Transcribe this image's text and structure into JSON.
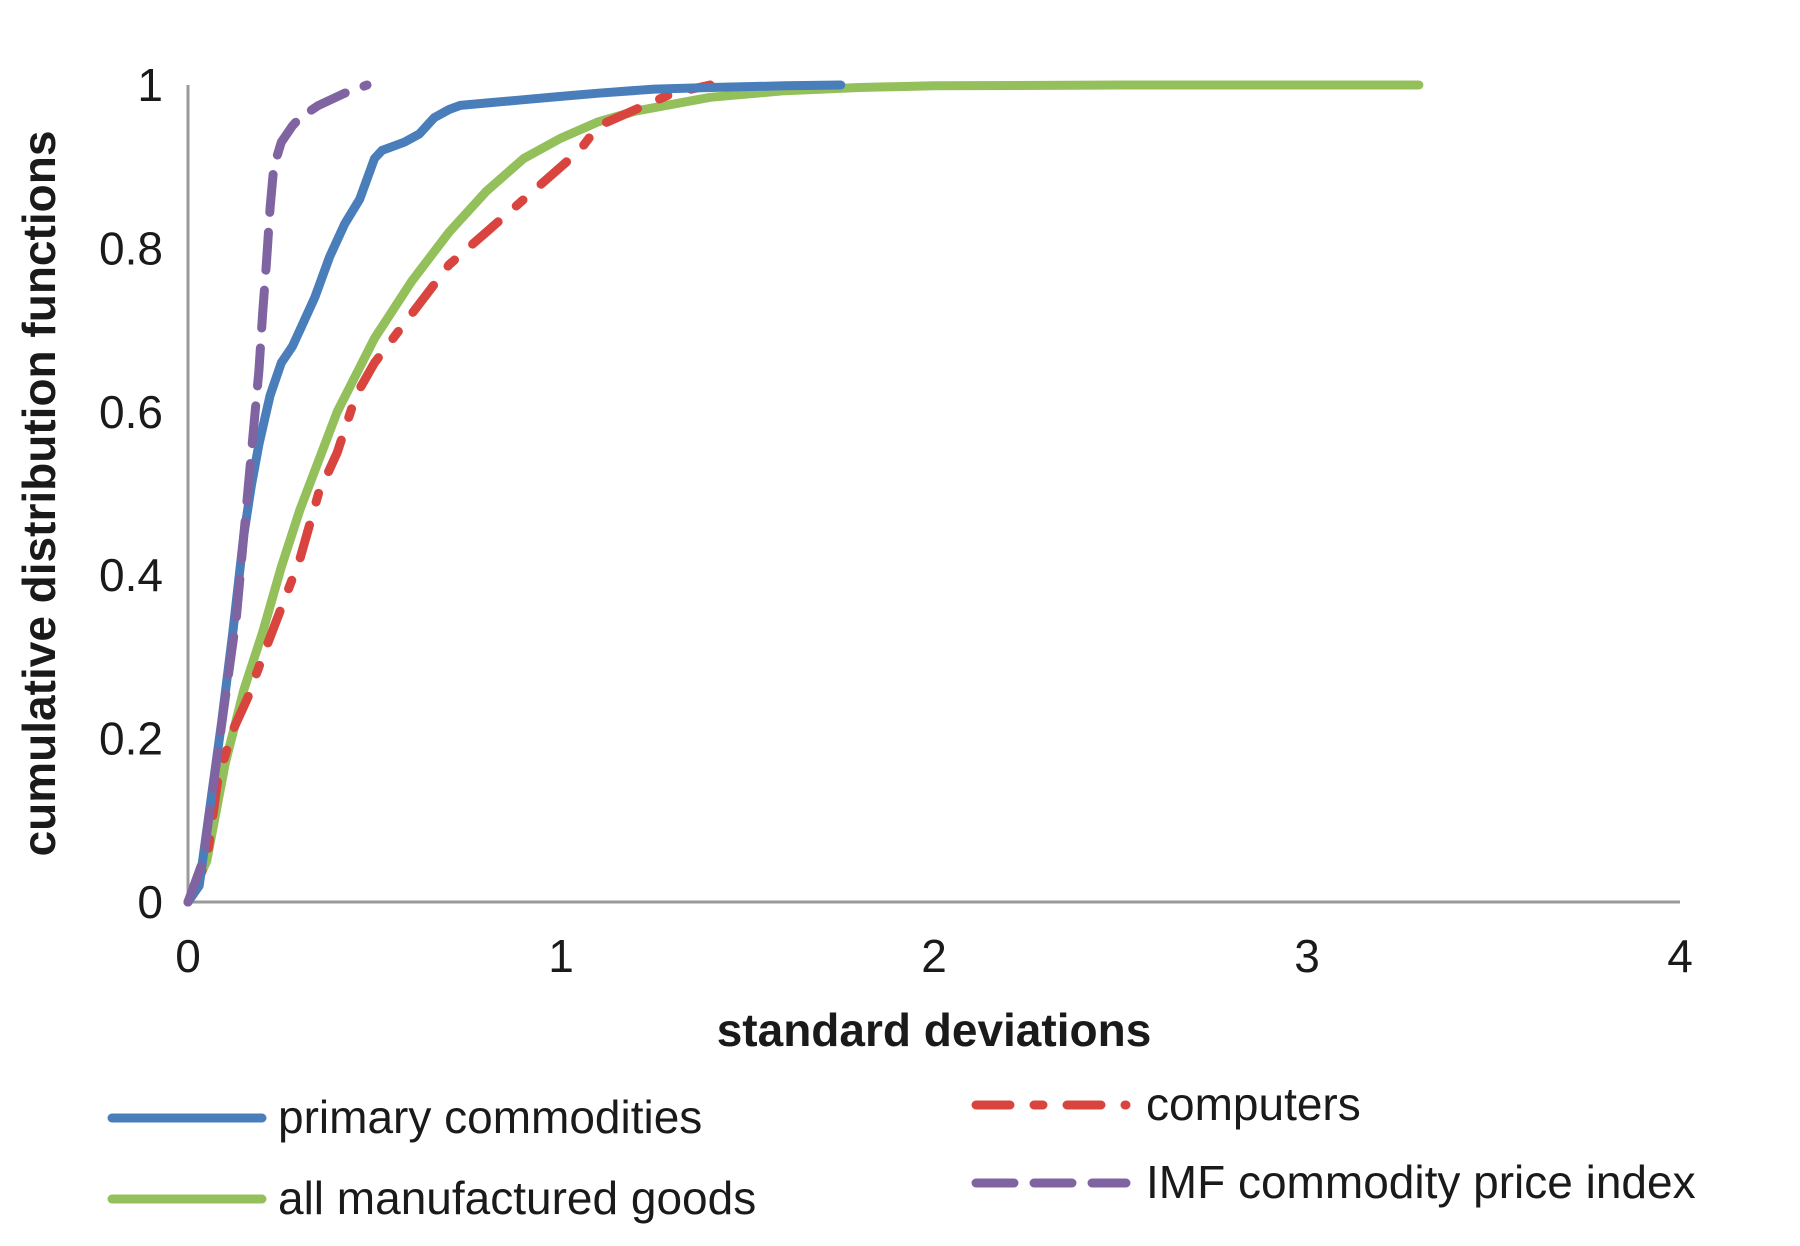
{
  "chart_data": {
    "type": "line",
    "xlabel": "standard deviations",
    "ylabel": "cumulative distribution functions",
    "xlim": [
      0,
      4
    ],
    "ylim": [
      0,
      1
    ],
    "x_ticks": [
      "0",
      "1",
      "2",
      "3",
      "4"
    ],
    "y_ticks": [
      "0",
      "0.2",
      "0.4",
      "0.6",
      "0.8",
      "1"
    ],
    "grid": false,
    "legend_position": "bottom",
    "series": [
      {
        "name": "primary commodities",
        "color": "#4a7ebb",
        "style": "solid",
        "x": [
          0.0,
          0.03,
          0.06,
          0.09,
          0.12,
          0.15,
          0.17,
          0.19,
          0.2,
          0.22,
          0.25,
          0.28,
          0.3,
          0.34,
          0.38,
          0.42,
          0.46,
          0.5,
          0.52,
          0.58,
          0.62,
          0.66,
          0.7,
          0.73,
          0.8,
          0.9,
          1.0,
          1.1,
          1.25,
          1.4,
          1.6,
          1.75
        ],
        "y": [
          0.0,
          0.02,
          0.12,
          0.22,
          0.33,
          0.45,
          0.51,
          0.56,
          0.58,
          0.62,
          0.66,
          0.68,
          0.7,
          0.74,
          0.79,
          0.83,
          0.86,
          0.91,
          0.92,
          0.93,
          0.94,
          0.96,
          0.97,
          0.975,
          0.978,
          0.982,
          0.986,
          0.99,
          0.995,
          0.997,
          0.999,
          1.0
        ]
      },
      {
        "name": "computers",
        "color": "#d9443f",
        "style": "dash-dot",
        "x": [
          0.0,
          0.05,
          0.08,
          0.12,
          0.16,
          0.2,
          0.25,
          0.3,
          0.35,
          0.4,
          0.45,
          0.5,
          0.55,
          0.6,
          0.65,
          0.7,
          0.8,
          0.9,
          1.0,
          1.05,
          1.1,
          1.2,
          1.3,
          1.4
        ],
        "y": [
          0.0,
          0.05,
          0.15,
          0.21,
          0.25,
          0.3,
          0.36,
          0.42,
          0.5,
          0.55,
          0.62,
          0.66,
          0.69,
          0.72,
          0.75,
          0.78,
          0.82,
          0.86,
          0.9,
          0.92,
          0.95,
          0.97,
          0.99,
          1.0
        ]
      },
      {
        "name": "all manufactured goods",
        "color": "#93c05a",
        "style": "solid",
        "x": [
          0.0,
          0.05,
          0.1,
          0.15,
          0.2,
          0.25,
          0.3,
          0.4,
          0.5,
          0.6,
          0.7,
          0.8,
          0.9,
          1.0,
          1.1,
          1.2,
          1.4,
          1.6,
          1.8,
          2.0,
          2.5,
          3.0,
          3.3
        ],
        "y": [
          0.0,
          0.05,
          0.17,
          0.26,
          0.33,
          0.41,
          0.48,
          0.6,
          0.69,
          0.76,
          0.82,
          0.87,
          0.91,
          0.935,
          0.955,
          0.968,
          0.985,
          0.993,
          0.997,
          0.999,
          1.0,
          1.0,
          1.0
        ]
      },
      {
        "name": "IMF commodity price index",
        "color": "#8064a2",
        "style": "dash",
        "x": [
          0.0,
          0.04,
          0.07,
          0.1,
          0.13,
          0.15,
          0.17,
          0.19,
          0.2,
          0.21,
          0.22,
          0.23,
          0.25,
          0.28,
          0.3,
          0.35,
          0.42,
          0.48
        ],
        "y": [
          0.0,
          0.05,
          0.15,
          0.25,
          0.35,
          0.45,
          0.55,
          0.65,
          0.72,
          0.78,
          0.85,
          0.9,
          0.93,
          0.95,
          0.96,
          0.975,
          0.99,
          1.0
        ]
      }
    ]
  }
}
